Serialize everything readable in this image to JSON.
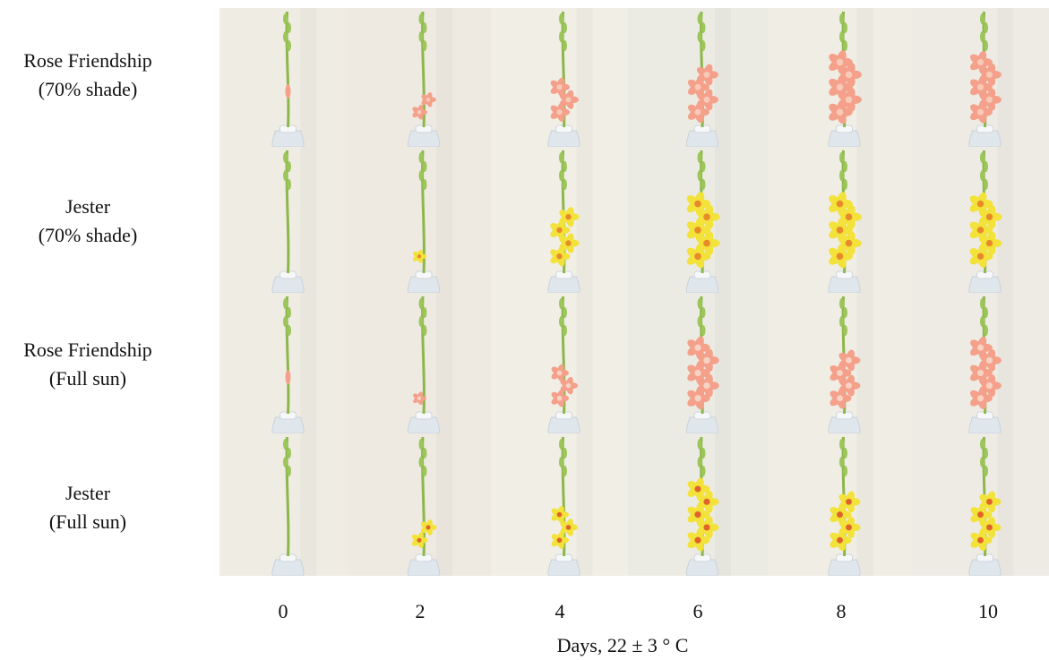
{
  "rows": [
    {
      "line1": "Rose Friendship",
      "line2": "(70% shade)",
      "flower": "#f4a08a",
      "throat": "#f7c9b6",
      "stages": [
        0.05,
        0.28,
        0.55,
        0.7,
        0.85,
        0.75
      ]
    },
    {
      "line1": "Jester",
      "line2": "(70% shade)",
      "flower": "#f2e23a",
      "throat": "#e88a2a",
      "stages": [
        0.0,
        0.2,
        0.6,
        0.85,
        0.85,
        0.8
      ]
    },
    {
      "line1": "Rose Friendship",
      "line2": "(Full sun)",
      "flower": "#f4a08a",
      "throat": "#f7d3c4",
      "stages": [
        0.08,
        0.18,
        0.45,
        0.78,
        0.7,
        0.75
      ]
    },
    {
      "line1": "Jester",
      "line2": "(Full sun)",
      "flower": "#f2e23a",
      "throat": "#e0642a",
      "stages": [
        0.0,
        0.35,
        0.45,
        0.75,
        0.7,
        0.7
      ]
    }
  ],
  "days": [
    "0",
    "2",
    "4",
    "6",
    "8",
    "10"
  ],
  "axis_title": "Days, 22 ± 3 ° C",
  "colors": {
    "background_wall": "#efece4",
    "stem": "#8cb74a",
    "vase": "#dfe6ec"
  }
}
